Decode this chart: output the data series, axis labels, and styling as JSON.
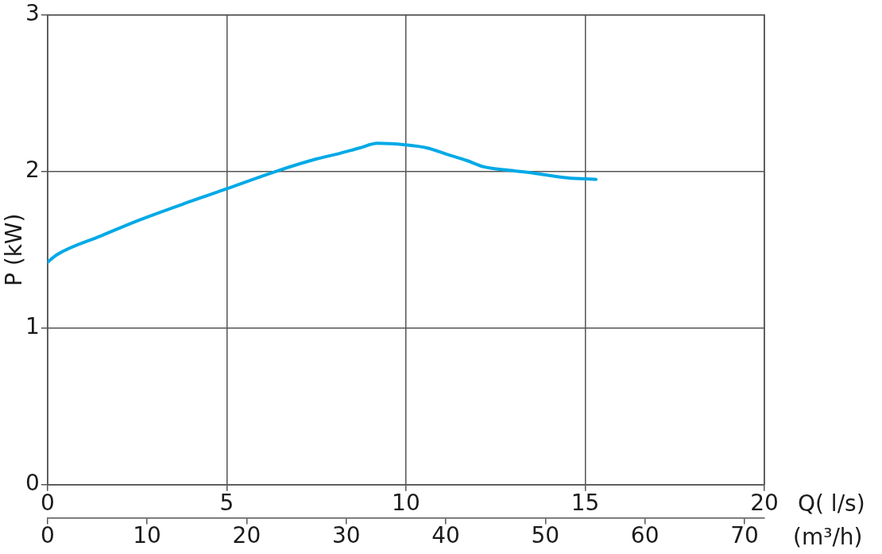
{
  "chart_data": {
    "type": "line",
    "xlabel": "Q( l/s)",
    "ylabel": "P (kW)",
    "x2label": "(m³/h)",
    "xlim": [
      0,
      20
    ],
    "xticks": [
      0,
      5,
      10,
      15,
      20
    ],
    "ylim": [
      0,
      3
    ],
    "yticks": [
      0,
      1,
      2,
      3
    ],
    "x2lim": [
      0,
      72
    ],
    "x2ticks": [
      0,
      10,
      20,
      30,
      40,
      50,
      60,
      70
    ],
    "grid": true,
    "legend": false,
    "marker": "none",
    "line_style": "solid",
    "series": [
      {
        "color": "#00a9e6",
        "x": [
          0,
          0.27,
          1.5,
          2.56,
          4,
          5,
          6.36,
          7.5,
          8.05,
          8.7,
          9.2,
          10,
          10.6,
          11.14,
          11.7,
          12.17,
          12.8,
          13.55,
          14.5,
          15.3
        ],
        "values": [
          1.42,
          1.47,
          1.59,
          1.69,
          1.81,
          1.89,
          2.0,
          2.08,
          2.11,
          2.15,
          2.18,
          2.17,
          2.15,
          2.11,
          2.07,
          2.03,
          2.01,
          1.99,
          1.96,
          1.95
        ]
      }
    ]
  }
}
